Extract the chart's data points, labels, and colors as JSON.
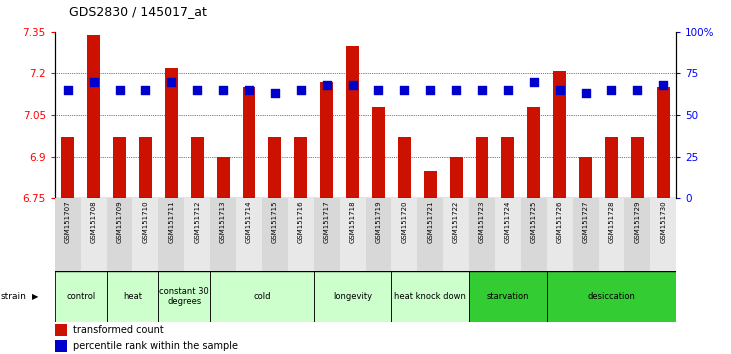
{
  "title": "GDS2830 / 145017_at",
  "samples": [
    "GSM151707",
    "GSM151708",
    "GSM151709",
    "GSM151710",
    "GSM151711",
    "GSM151712",
    "GSM151713",
    "GSM151714",
    "GSM151715",
    "GSM151716",
    "GSM151717",
    "GSM151718",
    "GSM151719",
    "GSM151720",
    "GSM151721",
    "GSM151722",
    "GSM151723",
    "GSM151724",
    "GSM151725",
    "GSM151726",
    "GSM151727",
    "GSM151728",
    "GSM151729",
    "GSM151730"
  ],
  "transformed_count": [
    6.97,
    7.34,
    6.97,
    6.97,
    7.22,
    6.97,
    6.9,
    7.15,
    6.97,
    6.97,
    7.17,
    7.3,
    7.08,
    6.97,
    6.85,
    6.9,
    6.97,
    6.97,
    7.08,
    7.21,
    6.9,
    6.97,
    6.97,
    7.15
  ],
  "percentile_rank": [
    65,
    70,
    65,
    65,
    70,
    65,
    65,
    65,
    63,
    65,
    68,
    68,
    65,
    65,
    65,
    65,
    65,
    65,
    70,
    65,
    63,
    65,
    65,
    68
  ],
  "groups": [
    {
      "label": "control",
      "start": 0,
      "end": 2,
      "color": "#ccffcc"
    },
    {
      "label": "heat",
      "start": 2,
      "end": 4,
      "color": "#ccffcc"
    },
    {
      "label": "constant 30\ndegrees",
      "start": 4,
      "end": 6,
      "color": "#ccffcc"
    },
    {
      "label": "cold",
      "start": 6,
      "end": 10,
      "color": "#ccffcc"
    },
    {
      "label": "longevity",
      "start": 10,
      "end": 13,
      "color": "#ccffcc"
    },
    {
      "label": "heat knock down",
      "start": 13,
      "end": 16,
      "color": "#ccffcc"
    },
    {
      "label": "starvation",
      "start": 16,
      "end": 19,
      "color": "#33cc33"
    },
    {
      "label": "desiccation",
      "start": 19,
      "end": 24,
      "color": "#33cc33"
    }
  ],
  "ylim_left": [
    6.75,
    7.35
  ],
  "ylim_right": [
    0,
    100
  ],
  "yticks_left": [
    6.75,
    6.9,
    7.05,
    7.2,
    7.35
  ],
  "yticks_right": [
    0,
    25,
    50,
    75,
    100
  ],
  "bar_color": "#cc1100",
  "dot_color": "#0000cc",
  "bar_bottom": 6.75,
  "dot_size": 30,
  "bg_colors": [
    "#d8d8d8",
    "#e8e8e8"
  ]
}
